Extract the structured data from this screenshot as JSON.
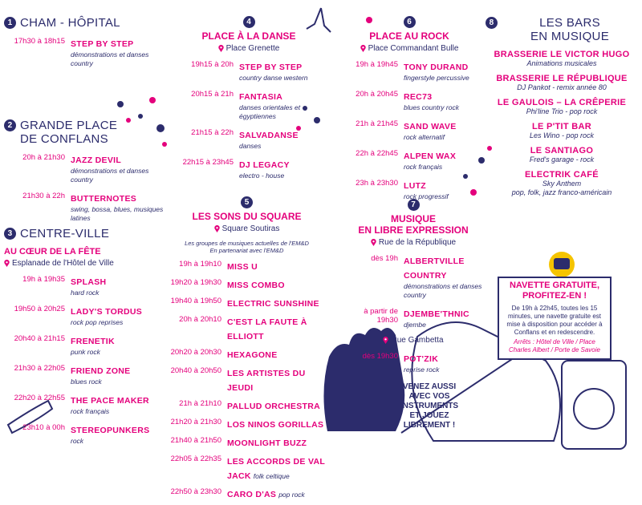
{
  "sections": [
    {
      "number": 1,
      "title": [
        "CHAM - HÔPITAL"
      ],
      "items": [
        {
          "time": "17h30 à 18h15",
          "name": "STEP BY STEP",
          "desc": "démonstrations et danses country"
        }
      ]
    },
    {
      "number": 2,
      "title": [
        "GRANDE PLACE",
        "DE CONFLANS"
      ],
      "items": [
        {
          "time": "20h à 21h30",
          "name": "JAZZ DEVIL",
          "desc": "démonstrations et danses country"
        },
        {
          "time": "21h30 à 22h",
          "name": "BUTTERNOTES",
          "desc": "swing, bossa, blues, musiques latines"
        }
      ]
    },
    {
      "number": 3,
      "title": [
        "CENTRE-VILLE"
      ],
      "subtitle": "AU CŒUR DE LA FÊTE",
      "venue": "Esplanade de l'Hôtel de Ville",
      "items": [
        {
          "time": "19h à 19h35",
          "name": "SPLASH",
          "desc": "hard rock"
        },
        {
          "time": "19h50 à 20h25",
          "name": "LADY'S TORDUS",
          "desc": "rock pop reprises"
        },
        {
          "time": "20h40 à 21h15",
          "name": "FRENETIK",
          "desc": "punk rock"
        },
        {
          "time": "21h30 à 22h05",
          "name": "FRIEND ZONE",
          "desc": "blues rock"
        },
        {
          "time": "22h20 à 22h55",
          "name": "THE PACE MAKER",
          "desc": "rock français"
        },
        {
          "time": "23h10 à 00h",
          "name": "STEREOPUNKERS",
          "desc": "rock"
        }
      ]
    },
    {
      "number": 4,
      "title": [
        "PLACE À LA DANSE"
      ],
      "venue": "Place Grenette",
      "items": [
        {
          "time": "19h15 à 20h",
          "name": "STEP BY STEP",
          "desc": "country danse western"
        },
        {
          "time": "20h15 à 21h",
          "name": "FANTASIA",
          "desc": "danses orientales et égyptiennes"
        },
        {
          "time": "21h15 à 22h",
          "name": "SALVADANSE",
          "desc": "danses"
        },
        {
          "time": "22h15 à 23h45",
          "name": "DJ LEGACY",
          "desc": "electro - house"
        }
      ]
    },
    {
      "number": 5,
      "title": [
        "LES SONS DU SQUARE"
      ],
      "venue": "Square Soutiras",
      "note": [
        "Les groupes de musiques actuelles de l'EM&D",
        "En partenariat avec l'EM&D"
      ],
      "items": [
        {
          "time": "19h à 19h10",
          "name": "MISS U"
        },
        {
          "time": "19h20 à 19h30",
          "name": "MISS COMBO"
        },
        {
          "time": "19h40 à 19h50",
          "name": "ELECTRIC SUNSHINE"
        },
        {
          "time": "20h à 20h10",
          "name": "C'EST LA FAUTE À ELLIOTT"
        },
        {
          "time": "20h20 à 20h30",
          "name": "HEXAGONE"
        },
        {
          "time": "20h40 à 20h50",
          "name": "LES ARTISTES DU JEUDI"
        },
        {
          "time": "21h à 21h10",
          "name": "PALLUD ORCHESTRA"
        },
        {
          "time": "21h20 à 21h30",
          "name": "LOS NINOS GORILLAS"
        },
        {
          "time": "21h40 à 21h50",
          "name": "MOONLIGHT BUZZ"
        },
        {
          "time": "22h05 à 22h35",
          "name": "LES ACCORDS DE VAL JACK",
          "desc": "folk celtique"
        },
        {
          "time": "22h50 à 23h30",
          "name": "CARO D'AS",
          "desc": "pop rock"
        }
      ]
    },
    {
      "number": 6,
      "title": [
        "PLACE AU ROCK"
      ],
      "venue": "Place Commandant Bulle",
      "items": [
        {
          "time": "19h à 19h45",
          "name": "TONY DURAND",
          "desc": "fingerstyle percussive"
        },
        {
          "time": "20h à 20h45",
          "name": "REC73",
          "desc": "blues country rock"
        },
        {
          "time": "21h à 21h45",
          "name": "SAND WAVE",
          "desc": "rock alternatif"
        },
        {
          "time": "22h à 22h45",
          "name": "ALPEN WAX",
          "desc": "rock français"
        },
        {
          "time": "23h à 23h30",
          "name": "LUTZ",
          "desc": "rock progressif"
        }
      ]
    },
    {
      "number": 7,
      "title": [
        "MUSIQUE",
        "EN LIBRE EXPRESSION"
      ],
      "venue": "Rue de la République",
      "items": [
        {
          "time": "dès 19h",
          "name": "ALBERTVILLE COUNTRY",
          "desc": "démonstrations et danses country"
        },
        {
          "time": "à partir de 19h30",
          "name": "DJEMBE'THNIC",
          "desc": "djembe"
        },
        {
          "venue": "Rue Gambetta"
        },
        {
          "time": "dès 19h30",
          "name": "POT'ZIK",
          "desc": "reprise rock"
        }
      ],
      "closing": [
        "VENEZ AUSSI",
        "AVEC VOS",
        "INSTRUMENTS",
        "ET JOUEZ",
        "LIBREMENT !"
      ]
    },
    {
      "number": 8,
      "title": [
        "LES BARS",
        "EN MUSIQUE"
      ],
      "bars": [
        {
          "name": "BRASSERIE LE VICTOR HUGO",
          "desc": [
            "Animations musicales"
          ]
        },
        {
          "name": "BRASSERIE LE RÉPUBLIQUE",
          "desc": [
            "DJ Pankot - remix année 80"
          ]
        },
        {
          "name": "LE GAULOIS – LA CRÊPERIE",
          "desc": [
            "Phi'line Trio - pop rock"
          ]
        },
        {
          "name": "LE P'TIT BAR",
          "desc": [
            "Les Wino - pop rock"
          ]
        },
        {
          "name": "LE SANTIAGO",
          "desc": [
            "Fred's garage - rock"
          ]
        },
        {
          "name": "ELECTRIK CAFÉ",
          "desc": [
            "Sky Anthem",
            "pop, folk, jazz franco-américain"
          ]
        }
      ]
    }
  ],
  "shuttle": {
    "title": [
      "NAVETTE GRATUITE,",
      "PROFITEZ-EN !"
    ],
    "body": "De 19h à 22h45, toutes les 15 minutes, une navette gratuite est mise à disposition pour accéder à Conflans et en redescendre.",
    "stops": "Arrêts : Hôtel de Ville / Place Charles Albert / Porte de Savoie"
  }
}
